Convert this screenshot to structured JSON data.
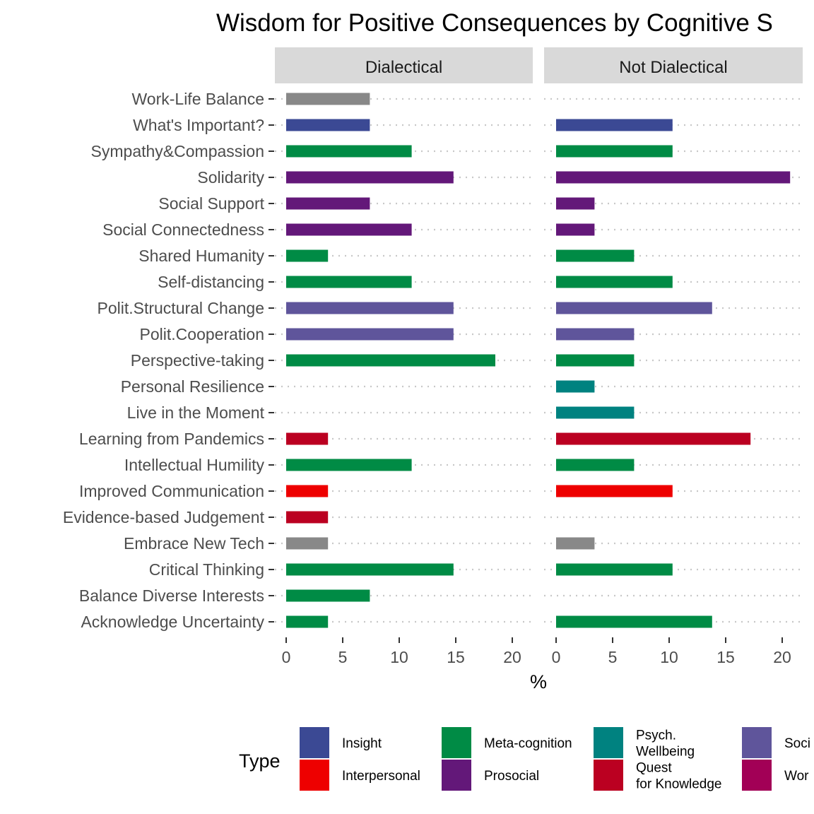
{
  "chart_data": {
    "type": "bar",
    "orientation": "horizontal",
    "title": "Wisdom for Positive Consequences by Cognitive S",
    "xlabel": "%",
    "ylabel": "",
    "xlim": [
      0,
      21
    ],
    "x_ticks": [
      0,
      5,
      10,
      15,
      20
    ],
    "grid": "dotted horizontal",
    "legend_position": "bottom",
    "legend_title": "Type",
    "categories": [
      "Work-Life Balance",
      "What's Important?",
      "Sympathy&Compassion",
      "Solidarity",
      "Social Support",
      "Social Connectedness",
      "Shared Humanity",
      "Self-distancing",
      "Polit.Structural Change",
      "Polit.Cooperation",
      "Perspective-taking",
      "Personal Resilience",
      "Live in the Moment",
      "Learning from Pandemics",
      "Intellectual Humility",
      "Improved Communication",
      "Evidence-based Judgement",
      "Embrace New Tech",
      "Critical Thinking",
      "Balance Diverse Interests",
      "Acknowledge Uncertainty"
    ],
    "category_type": [
      "Work",
      "Insight",
      "Meta-cognition",
      "Prosocial",
      "Prosocial",
      "Prosocial",
      "Meta-cognition",
      "Meta-cognition",
      "Soci",
      "Soci",
      "Meta-cognition",
      "Psych. Wellbeing",
      "Psych. Wellbeing",
      "Quest for Knowledge",
      "Meta-cognition",
      "Interpersonal",
      "Quest for Knowledge",
      "Work",
      "Meta-cognition",
      "Meta-cognition",
      "Meta-cognition"
    ],
    "panels": [
      {
        "name": "Dialectical",
        "values": [
          7.4,
          7.4,
          11.1,
          14.8,
          7.4,
          11.1,
          3.7,
          11.1,
          14.8,
          14.8,
          18.5,
          0,
          0,
          3.7,
          11.1,
          3.7,
          3.7,
          3.7,
          14.8,
          7.4,
          3.7
        ]
      },
      {
        "name": "Not Dialectical",
        "values": [
          0,
          10.3,
          10.3,
          20.7,
          3.4,
          3.4,
          6.9,
          10.3,
          13.8,
          6.9,
          6.9,
          3.4,
          6.9,
          17.2,
          6.9,
          10.3,
          0,
          3.4,
          10.3,
          0,
          13.8
        ]
      }
    ],
    "legend": [
      {
        "label": "Insight",
        "color": "#3b4994"
      },
      {
        "label": "Interpersonal",
        "color": "#ee0000"
      },
      {
        "label": "Meta-cognition",
        "color": "#008b45"
      },
      {
        "label": "Prosocial",
        "color": "#631879"
      },
      {
        "label": "Psych.\nWellbeing",
        "color": "#008280"
      },
      {
        "label": "Quest\nfor Knowledge",
        "color": "#bb0021"
      },
      {
        "label": "Soci",
        "color": "#5f559b"
      },
      {
        "label": "Wor",
        "color": "#a20056"
      }
    ]
  }
}
